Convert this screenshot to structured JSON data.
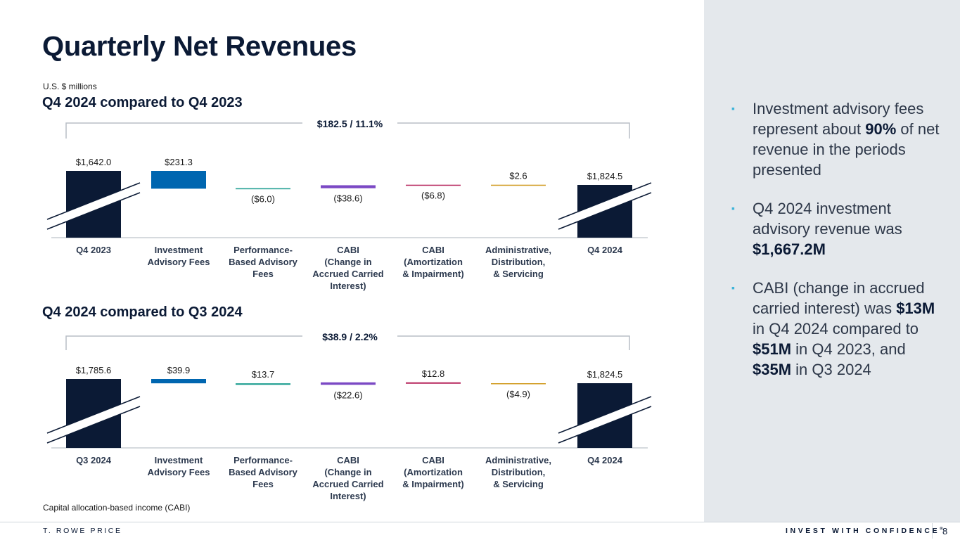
{
  "title": "Quarterly Net Revenues",
  "units": "U.S. $ millions",
  "colors": {
    "navy": "#0b1a35",
    "blue": "#0066b0",
    "teal": "#1a9c8f",
    "purple": "#7b49c4",
    "magenta": "#b5235a",
    "gold": "#d09a1d",
    "bullet": "#3fb4d9"
  },
  "chart_data": [
    {
      "type": "bar",
      "subtype": "waterfall",
      "title": "Q4 2024 compared to Q4 2023",
      "change_label": "$182.5 / 11.1%",
      "categories": [
        "Q4 2023",
        "Investment\nAdvisory Fees",
        "Performance-\nBased Advisory\nFees",
        "CABI\n(Change in\nAccrued Carried\nInterest)",
        "CABI\n(Amortization\n& Impairment)",
        "Administrative,\nDistribution,\n& Servicing",
        "Q4 2024"
      ],
      "values": [
        1642.0,
        231.3,
        -6.0,
        -38.6,
        -6.8,
        2.6,
        1824.5
      ],
      "measures": [
        "total",
        "relative",
        "relative",
        "relative",
        "relative",
        "relative",
        "total"
      ],
      "labels": [
        "$1,642.0",
        "$231.3",
        "($6.0)",
        "($38.6)",
        "($6.8)",
        "$2.6",
        "$1,824.5"
      ],
      "axis_break": true
    },
    {
      "type": "bar",
      "subtype": "waterfall",
      "title": "Q4 2024 compared to Q3 2024",
      "change_label": "$38.9 / 2.2%",
      "categories": [
        "Q3 2024",
        "Investment\nAdvisory Fees",
        "Performance-\nBased Advisory\nFees",
        "CABI\n(Change in\nAccrued Carried\nInterest)",
        "CABI\n(Amortization\n& Impairment)",
        "Administrative,\nDistribution,\n& Servicing",
        "Q4 2024"
      ],
      "values": [
        1785.6,
        39.9,
        13.7,
        -22.6,
        12.8,
        -4.9,
        1824.5
      ],
      "measures": [
        "total",
        "relative",
        "relative",
        "relative",
        "relative",
        "relative",
        "total"
      ],
      "labels": [
        "$1,785.6",
        "$39.9",
        "$13.7",
        "($22.6)",
        "$12.8",
        "($4.9)",
        "$1,824.5"
      ],
      "axis_break": true
    }
  ],
  "footnote": "Capital allocation-based income (CABI)",
  "bullets": [
    [
      {
        "t": "Investment advisory fees represent about ",
        "b": false
      },
      {
        "t": "90%",
        "b": true
      },
      {
        "t": " of net revenue in the periods presented",
        "b": false
      }
    ],
    [
      {
        "t": "Q4 2024 investment advisory revenue was ",
        "b": false
      },
      {
        "t": "$1,667.2M",
        "b": true
      }
    ],
    [
      {
        "t": "CABI (change in accrued carried interest) was ",
        "b": false
      },
      {
        "t": "$13M",
        "b": true
      },
      {
        "t": " in Q4 2024 compared to ",
        "b": false
      },
      {
        "t": "$51M",
        "b": true
      },
      {
        "t": " in Q4 2023, and ",
        "b": false
      },
      {
        "t": "$35M",
        "b": true
      },
      {
        "t": " in Q3 2024",
        "b": false
      }
    ]
  ],
  "footer": {
    "brand": "T. ROWE PRICE",
    "tagline": "INVEST WITH CONFIDENCE",
    "tagline_mark": "®",
    "page": "8"
  }
}
